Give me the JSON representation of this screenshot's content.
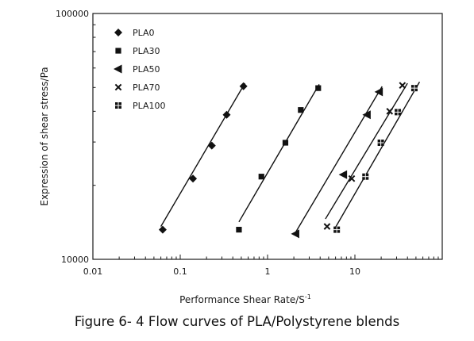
{
  "caption": "Figure 6- 4  Flow curves of PLA/Polystyrene blends",
  "chart_data": {
    "type": "scatter",
    "title": "",
    "xlabel": "Performance Shear Rate/S",
    "xlabel_superscript": "-1",
    "ylabel": "Expression of shear stress/Pa",
    "xscale": "log",
    "yscale": "log",
    "xlim": [
      0.01,
      100
    ],
    "ylim": [
      10000,
      100000
    ],
    "x_ticks": [
      {
        "value": 0.01,
        "label": "0.01"
      },
      {
        "value": 0.1,
        "label": "0.1"
      },
      {
        "value": 1,
        "label": "1"
      },
      {
        "value": 10,
        "label": "10"
      }
    ],
    "y_ticks": [
      {
        "value": 10000,
        "label": "10000"
      },
      {
        "value": 100000,
        "label": "100000"
      }
    ],
    "grid": false,
    "legend_position": "top-left",
    "series": [
      {
        "name": "PLA0",
        "marker": "diamond",
        "points": [
          [
            0.063,
            13200
          ],
          [
            0.14,
            21300
          ],
          [
            0.23,
            29000
          ],
          [
            0.34,
            38700
          ],
          [
            0.53,
            50600
          ]
        ],
        "fit": [
          [
            0.06,
            13600
          ],
          [
            0.55,
            52000
          ]
        ]
      },
      {
        "name": "PLA30",
        "marker": "square",
        "points": [
          [
            0.47,
            13200
          ],
          [
            0.85,
            21700
          ],
          [
            1.6,
            29800
          ],
          [
            2.4,
            40500
          ],
          [
            3.8,
            49700
          ]
        ],
        "fit": [
          [
            0.47,
            14200
          ],
          [
            3.9,
            51500
          ]
        ]
      },
      {
        "name": "PLA50",
        "marker": "triangle-left",
        "points": [
          [
            2.1,
            12700
          ],
          [
            7.4,
            22100
          ],
          [
            13.8,
            38700
          ],
          [
            19,
            48000
          ]
        ],
        "fit": [
          [
            2.1,
            12900
          ],
          [
            20.5,
            50500
          ]
        ]
      },
      {
        "name": "PLA70",
        "marker": "x",
        "points": [
          [
            4.8,
            13600
          ],
          [
            9.2,
            21300
          ],
          [
            25,
            40000
          ],
          [
            35,
            51000
          ]
        ],
        "fit": [
          [
            4.6,
            14600
          ],
          [
            40,
            52000
          ]
        ]
      },
      {
        "name": "PLA100",
        "marker": "grid-square",
        "points": [
          [
            6.2,
            13200
          ],
          [
            13.2,
            21700
          ],
          [
            19.8,
            29800
          ],
          [
            31,
            39700
          ],
          [
            48,
            49700
          ]
        ],
        "fit": [
          [
            6,
            13500
          ],
          [
            55,
            52700
          ]
        ]
      }
    ]
  }
}
